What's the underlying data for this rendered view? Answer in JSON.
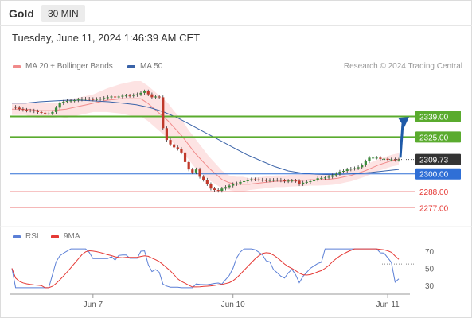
{
  "header": {
    "title": "Gold",
    "timeframe": "30 MIN"
  },
  "timestamp": "Tuesday, June 11, 2024 1:46:39 AM CET",
  "legend": {
    "ma20": {
      "label": "MA 20 + Bollinger Bands",
      "color": "#f08a8a"
    },
    "ma50": {
      "label": "MA 50",
      "color": "#3a63a8"
    },
    "rsi": {
      "label": "RSI",
      "color": "#5b7fd6"
    },
    "ma9": {
      "label": "9MA",
      "color": "#e53935"
    }
  },
  "credit": "Research © 2024 Trading Central",
  "colors": {
    "resistance": "#5aab2e",
    "support_main": "#2f6fd6",
    "support_minor": "#f2a0a0",
    "support_label_text": "#e53935",
    "price_tag": "#333333",
    "arrow": "#1f5aa8",
    "band_fill": "#fde0e0",
    "candle_up": "#3c8c3c",
    "candle_down": "#c0392b"
  },
  "chart_data": [
    {
      "type": "candlestick",
      "title": "Gold",
      "timeframe": "30 MIN",
      "ylim": [
        2275,
        2356
      ],
      "x_ticks": [
        {
          "index": 22,
          "label": "Jun 7"
        },
        {
          "index": 60,
          "label": "Jun 10"
        },
        {
          "index": 102,
          "label": "Jun 11"
        }
      ],
      "levels": [
        {
          "value": 2339.0,
          "label": "2339.00",
          "kind": "resistance"
        },
        {
          "value": 2325.0,
          "label": "2325.00",
          "kind": "resistance"
        },
        {
          "value": 2309.73,
          "label": "2309.73",
          "kind": "current"
        },
        {
          "value": 2300.0,
          "label": "2300.00",
          "kind": "pivot"
        },
        {
          "value": 2288.0,
          "label": "2288.00",
          "kind": "support"
        },
        {
          "value": 2277.0,
          "label": "2277.00",
          "kind": "support"
        }
      ],
      "close": [
        2345.5,
        2345,
        2344,
        2343.5,
        2343,
        2343,
        2342.5,
        2342,
        2341.5,
        2341,
        2341,
        2342,
        2345,
        2348,
        2349,
        2349.5,
        2349.8,
        2350,
        2350.5,
        2351,
        2351,
        2350.8,
        2350.5,
        2350.8,
        2351,
        2351.5,
        2352,
        2352.5,
        2352,
        2352.5,
        2353,
        2353.2,
        2353,
        2353.5,
        2354,
        2355,
        2356,
        2354,
        2352,
        2352.5,
        2352,
        2331,
        2323,
        2320,
        2318,
        2317,
        2314.5,
        2308,
        2303,
        2301,
        2303,
        2298,
        2296,
        2293,
        2290,
        2289,
        2288.5,
        2290,
        2291,
        2292,
        2293,
        2293.5,
        2294.5,
        2295,
        2296,
        2296.3,
        2296.2,
        2296,
        2295.8,
        2295.5,
        2295.8,
        2295.9,
        2296,
        2295.5,
        2295,
        2295.3,
        2295.4,
        2295.2,
        2293,
        2294,
        2294.5,
        2295,
        2296,
        2297,
        2297.2,
        2297.5,
        2298,
        2299,
        2300,
        2301.5,
        2302,
        2303,
        2303.5,
        2303.8,
        2304.5,
        2306,
        2308.5,
        2311,
        2311,
        2311,
        2310.2,
        2310.3,
        2309.6,
        2309.8,
        2309.5,
        2309.73
      ],
      "ma20_approx": [
        2344,
        2344,
        2344,
        2343.5,
        2343,
        2343,
        2343,
        2343.5,
        2344,
        2345,
        2346,
        2347,
        2348,
        2349,
        2350,
        2350.5,
        2351,
        2351,
        2351,
        2351,
        2348,
        2344,
        2340,
        2336,
        2331,
        2326,
        2320,
        2314,
        2309,
        2304,
        2300,
        2296,
        2294,
        2293,
        2293,
        2293,
        2293.5,
        2294,
        2294.5,
        2295,
        2295,
        2295.3,
        2295.5,
        2295.7,
        2296,
        2296,
        2296.2,
        2296.5,
        2297,
        2298,
        2299,
        2300.5,
        2302,
        2304,
        2306,
        2307.5,
        2309,
        2310
      ],
      "ma50_approx": [
        2348,
        2348,
        2349,
        2349.5,
        2350,
        2350,
        2349.5,
        2349,
        2348,
        2347,
        2345,
        2342,
        2338,
        2333,
        2328,
        2323,
        2318,
        2313,
        2309,
        2305,
        2302,
        2300.5,
        2299.8,
        2299.5,
        2299.8,
        2300.2,
        2301,
        2302,
        2303
      ],
      "rsi_panel": {
        "ticks": [
          70,
          50,
          30
        ],
        "dotted_levels": [
          55
        ]
      }
    }
  ]
}
